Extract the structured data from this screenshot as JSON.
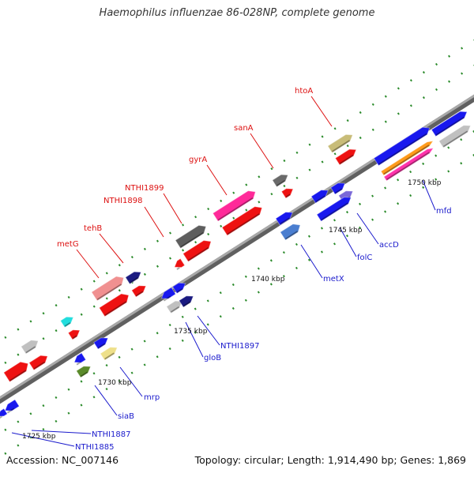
{
  "title": "Haemophilus influenzae 86-028NP, complete genome",
  "footer": {
    "accession": "Accession: NC_007146",
    "topology": "Topology: circular; Length: 1,914,490 bp; Genes: 1,869"
  },
  "colors": {
    "backbone": "#8a8a8a",
    "tick": "#2a8a2a",
    "label_red": "#dd1111",
    "label_blue": "#1a1acc",
    "scale_text": "#111111"
  },
  "scale_labels": [
    {
      "text": "1725 kbp",
      "kbp": 1725
    },
    {
      "text": "1730 kbp",
      "kbp": 1730
    },
    {
      "text": "1735 kbp",
      "kbp": 1735
    },
    {
      "text": "1740 kbp",
      "kbp": 1740
    },
    {
      "text": "1745 kbp",
      "kbp": 1745
    },
    {
      "text": "1750 kbp",
      "kbp": 1750
    }
  ],
  "gene_labels_red": [
    "htoA",
    "sanA",
    "gyrA",
    "NTHI1899",
    "NTHI1898",
    "tehB",
    "metG"
  ],
  "gene_labels_blue": [
    "mfd",
    "accD",
    "folC",
    "metX",
    "NTHI1897",
    "gloB",
    "mrp",
    "siaB",
    "NTHI1887",
    "NTHI1885"
  ]
}
